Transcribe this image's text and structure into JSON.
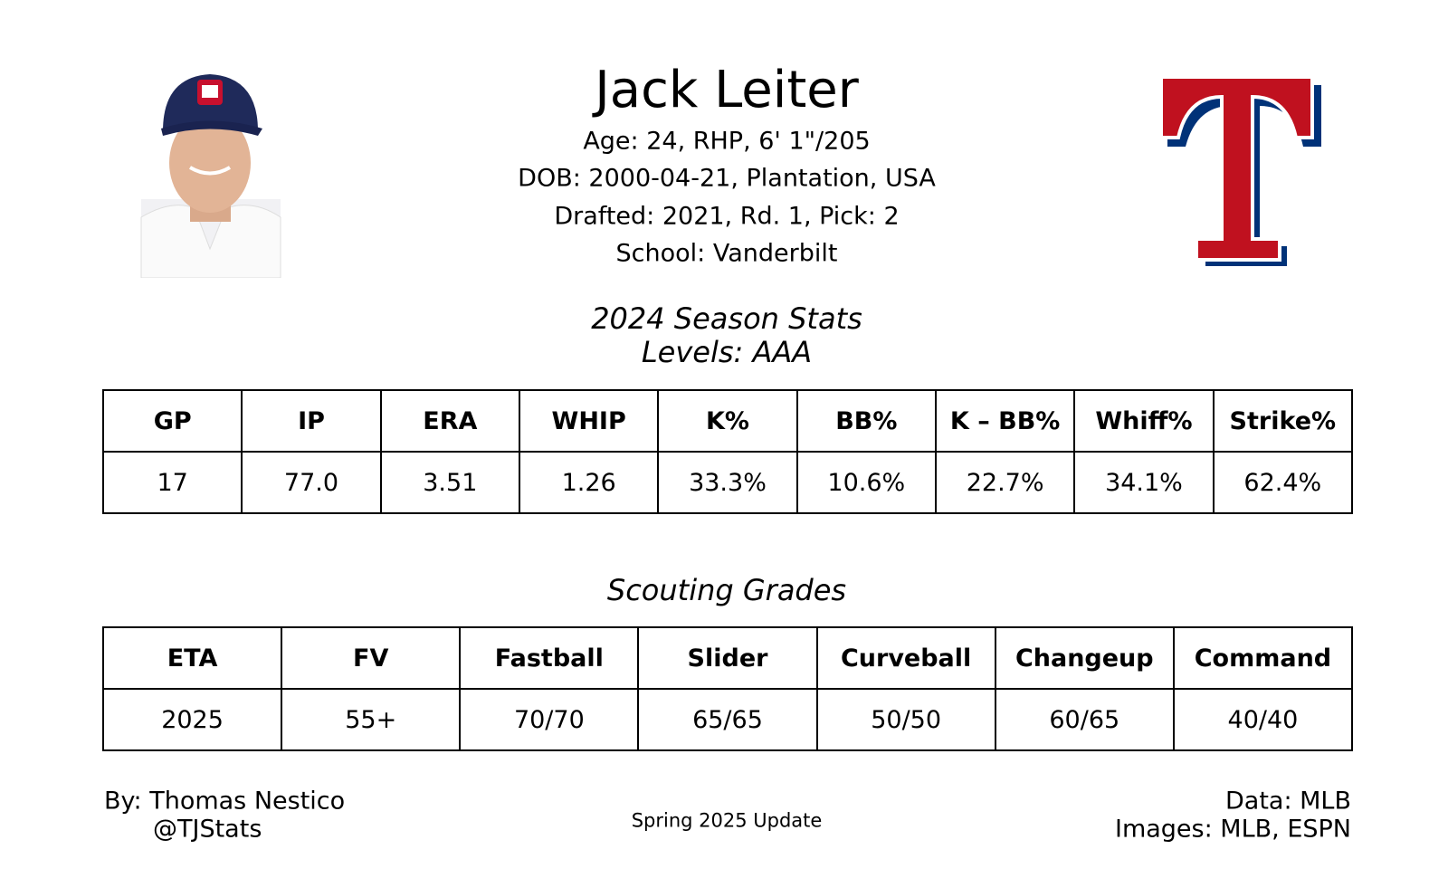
{
  "header": {
    "name": "Jack Leiter",
    "bio": [
      "Age: 24, RHP, 6' 1\"/205",
      "DOB: 2000-04-21, Plantation, USA",
      "Drafted: 2021, Rd. 1, Pick: 2",
      "School: Vanderbilt"
    ]
  },
  "stats": {
    "title": "2024 Season Stats",
    "levels": "Levels: AAA",
    "headers": [
      "GP",
      "IP",
      "ERA",
      "WHIP",
      "K%",
      "BB%",
      "K – BB%",
      "Whiff%",
      "Strike%"
    ],
    "values": [
      "17",
      "77.0",
      "3.51",
      "1.26",
      "33.3%",
      "10.6%",
      "22.7%",
      "34.1%",
      "62.4%"
    ]
  },
  "grades": {
    "title": "Scouting Grades",
    "headers": [
      "ETA",
      "FV",
      "Fastball",
      "Slider",
      "Curveball",
      "Changeup",
      "Command"
    ],
    "values": [
      "2025",
      "55+",
      "70/70",
      "65/65",
      "50/50",
      "60/65",
      "40/40"
    ]
  },
  "footer": {
    "author": "By: Thomas Nestico",
    "handle": "@TJStats",
    "update": "Spring 2025 Update",
    "data": "Data: MLB",
    "images": "Images: MLB, ESPN"
  }
}
